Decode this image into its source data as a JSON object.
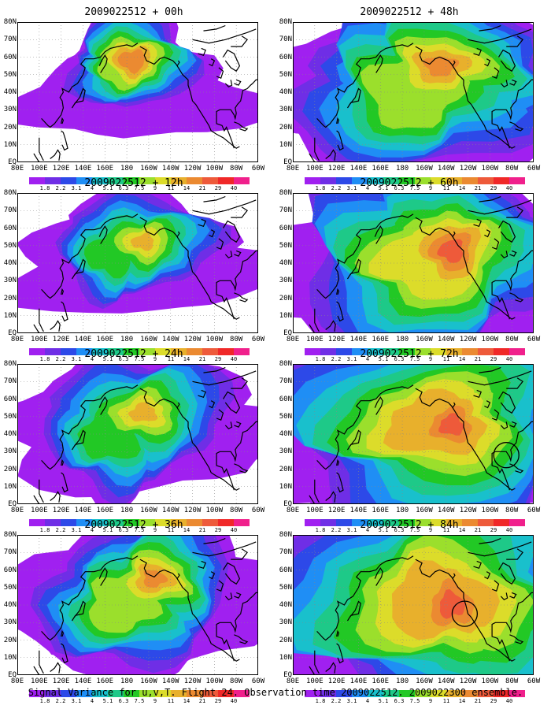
{
  "panels": [
    {
      "title": "2009022512 + 00h",
      "lead_hours": 0,
      "max_level": 11,
      "cores": [
        {
          "lon": 185,
          "lat": 58,
          "rx": 60,
          "ry": 30,
          "level": 9
        },
        {
          "lon": 175,
          "lat": 52,
          "rx": 45,
          "ry": 20,
          "level": 7
        }
      ]
    },
    {
      "title": "2009022512 + 12h",
      "lead_hours": 12,
      "max_level": 9,
      "cores": [
        {
          "lon": 195,
          "lat": 52,
          "rx": 65,
          "ry": 28,
          "level": 8
        },
        {
          "lon": 165,
          "lat": 45,
          "rx": 45,
          "ry": 25,
          "level": 6
        }
      ]
    },
    {
      "title": "2009022512 + 24h",
      "lead_hours": 24,
      "max_level": 9,
      "cores": [
        {
          "lon": 195,
          "lat": 52,
          "rx": 70,
          "ry": 30,
          "level": 8
        },
        {
          "lon": 165,
          "lat": 40,
          "rx": 50,
          "ry": 30,
          "level": 6
        }
      ]
    },
    {
      "title": "2009022512 + 36h",
      "lead_hours": 36,
      "max_level": 10,
      "cores": [
        {
          "lon": 205,
          "lat": 55,
          "rx": 60,
          "ry": 28,
          "level": 9
        },
        {
          "lon": 175,
          "lat": 40,
          "rx": 60,
          "ry": 30,
          "level": 7
        }
      ]
    },
    {
      "title": "2009022512 + 48h",
      "lead_hours": 48,
      "max_level": 10,
      "cores": [
        {
          "lon": 215,
          "lat": 55,
          "rx": 80,
          "ry": 30,
          "level": 9
        },
        {
          "lon": 190,
          "lat": 40,
          "rx": 80,
          "ry": 35,
          "level": 7
        }
      ]
    },
    {
      "title": "2009022512 + 60h",
      "lead_hours": 60,
      "max_level": 11,
      "cores": [
        {
          "lon": 225,
          "lat": 47,
          "rx": 60,
          "ry": 35,
          "level": 10
        },
        {
          "lon": 205,
          "lat": 40,
          "rx": 85,
          "ry": 35,
          "level": 8
        }
      ]
    },
    {
      "title": "2009022512 + 72h",
      "lead_hours": 72,
      "max_level": 11,
      "cores": [
        {
          "lon": 225,
          "lat": 45,
          "rx": 55,
          "ry": 30,
          "level": 10
        },
        {
          "lon": 210,
          "lat": 45,
          "rx": 95,
          "ry": 38,
          "level": 9
        }
      ],
      "circle": {
        "lon": 275,
        "lat": 28
      }
    },
    {
      "title": "2009022512 + 84h",
      "lead_hours": 84,
      "max_level": 11,
      "cores": [
        {
          "lon": 225,
          "lat": 40,
          "rx": 55,
          "ry": 35,
          "level": 10
        },
        {
          "lon": 215,
          "lat": 42,
          "rx": 100,
          "ry": 40,
          "level": 9
        }
      ],
      "circle": {
        "lon": 237,
        "lat": 35
      }
    }
  ],
  "lat_labels": [
    "80N",
    "70N",
    "60N",
    "50N",
    "40N",
    "30N",
    "20N",
    "10N",
    "EQ"
  ],
  "lon_labels": [
    "80E",
    "100E",
    "120E",
    "140E",
    "160E",
    "180",
    "160W",
    "140W",
    "120W",
    "100W",
    "80W",
    "60W"
  ],
  "colorbar": {
    "labels": [
      "1.8",
      "2.2",
      "3.1",
      "4",
      "5.1",
      "6.3",
      "7.5",
      "9",
      "11",
      "14",
      "21",
      "29",
      "40"
    ],
    "colors": [
      "#a020f0",
      "#6f2ee6",
      "#2d49e8",
      "#1f8ef5",
      "#19c0cc",
      "#1ec988",
      "#22c825",
      "#9bdf2c",
      "#dcdc2a",
      "#e8b02c",
      "#eb8a31",
      "#ee5a3a",
      "#f02828",
      "#f0208c"
    ]
  },
  "footer": "Signal Variance for u,v,T. Flight 24. Observation time 2009022512. 2009022300 ensemble."
}
